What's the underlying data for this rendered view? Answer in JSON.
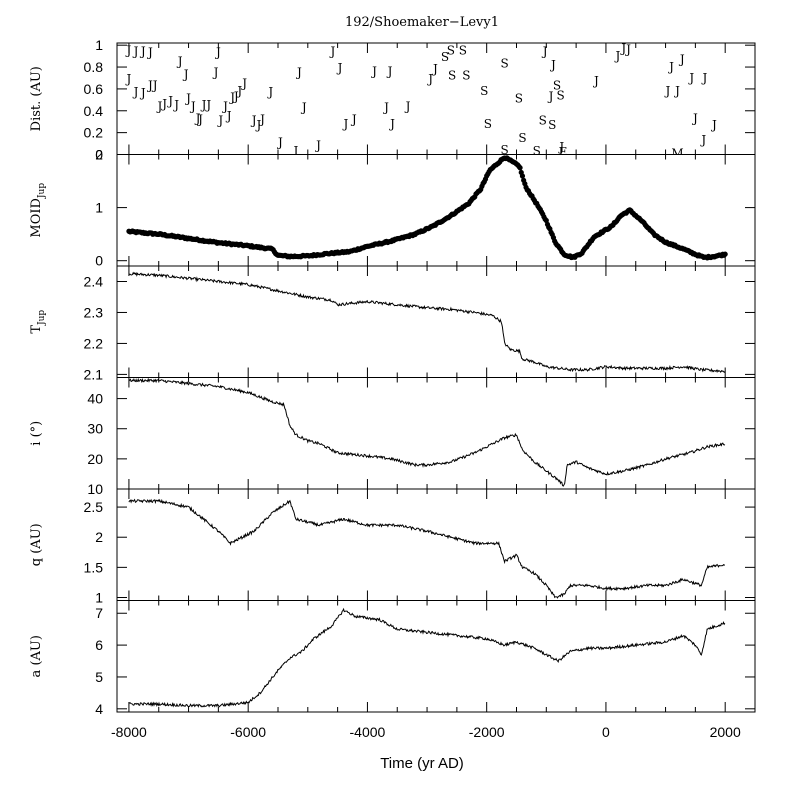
{
  "title": "192/Shoemaker−Levy1",
  "xlabel": "Time (yr AD)",
  "chart_data": [
    {
      "type": "scatter",
      "name": "distance",
      "ylabel": "Dist. (AU)",
      "xlim": [
        -8200,
        2500
      ],
      "ylim": [
        0,
        1.02
      ],
      "yticks": [
        0,
        0.2,
        0.4,
        0.6,
        0.8,
        1
      ],
      "ytick_labels": [
        "0",
        "0.2",
        "0.4",
        "0.6",
        "0.8",
        "1"
      ],
      "points": [
        {
          "x": -8000,
          "y": 0.96,
          "label": "J"
        },
        {
          "x": -7880,
          "y": 0.95,
          "label": "J"
        },
        {
          "x": -7760,
          "y": 0.95,
          "label": "J"
        },
        {
          "x": -7640,
          "y": 0.94,
          "label": "J"
        },
        {
          "x": -8000,
          "y": 0.7,
          "label": "J"
        },
        {
          "x": -7880,
          "y": 0.58,
          "label": "J"
        },
        {
          "x": -7760,
          "y": 0.57,
          "label": "J"
        },
        {
          "x": -7640,
          "y": 0.64,
          "label": "J"
        },
        {
          "x": -7560,
          "y": 0.64,
          "label": "J"
        },
        {
          "x": -7480,
          "y": 0.45,
          "label": "J"
        },
        {
          "x": -7400,
          "y": 0.47,
          "label": "J"
        },
        {
          "x": -7300,
          "y": 0.5,
          "label": "J"
        },
        {
          "x": -7200,
          "y": 0.46,
          "label": "J"
        },
        {
          "x": -7140,
          "y": 0.86,
          "label": "J"
        },
        {
          "x": -7040,
          "y": 0.74,
          "label": "J"
        },
        {
          "x": -7000,
          "y": 0.52,
          "label": "J"
        },
        {
          "x": -6920,
          "y": 0.45,
          "label": "J"
        },
        {
          "x": -6840,
          "y": 0.34,
          "label": "J"
        },
        {
          "x": -6800,
          "y": 0.33,
          "label": "J"
        },
        {
          "x": -6740,
          "y": 0.46,
          "label": "J"
        },
        {
          "x": -6660,
          "y": 0.46,
          "label": "J"
        },
        {
          "x": -6540,
          "y": 0.76,
          "label": "J"
        },
        {
          "x": -6500,
          "y": 0.94,
          "label": "J"
        },
        {
          "x": -6460,
          "y": 0.32,
          "label": "J"
        },
        {
          "x": -6380,
          "y": 0.45,
          "label": "J"
        },
        {
          "x": -6320,
          "y": 0.36,
          "label": "J"
        },
        {
          "x": -6260,
          "y": 0.53,
          "label": "J"
        },
        {
          "x": -6200,
          "y": 0.54,
          "label": "J"
        },
        {
          "x": -6140,
          "y": 0.59,
          "label": "J"
        },
        {
          "x": -6060,
          "y": 0.66,
          "label": "J"
        },
        {
          "x": -5900,
          "y": 0.32,
          "label": "J"
        },
        {
          "x": -5820,
          "y": 0.28,
          "label": "J"
        },
        {
          "x": -5760,
          "y": 0.33,
          "label": "J"
        },
        {
          "x": -5620,
          "y": 0.58,
          "label": "J"
        },
        {
          "x": -5460,
          "y": 0.12,
          "label": "J"
        },
        {
          "x": -5200,
          "y": 0.04,
          "label": "J"
        },
        {
          "x": -5140,
          "y": 0.76,
          "label": "J"
        },
        {
          "x": -5060,
          "y": 0.44,
          "label": "J"
        },
        {
          "x": -4820,
          "y": 0.09,
          "label": "J"
        },
        {
          "x": -4580,
          "y": 0.95,
          "label": "J"
        },
        {
          "x": -4460,
          "y": 0.8,
          "label": "J"
        },
        {
          "x": -4360,
          "y": 0.29,
          "label": "J"
        },
        {
          "x": -4220,
          "y": 0.33,
          "label": "J"
        },
        {
          "x": -3880,
          "y": 0.77,
          "label": "J"
        },
        {
          "x": -3620,
          "y": 0.77,
          "label": "J"
        },
        {
          "x": -3680,
          "y": 0.44,
          "label": "J"
        },
        {
          "x": -3580,
          "y": 0.29,
          "label": "J"
        },
        {
          "x": -3320,
          "y": 0.45,
          "label": "J"
        },
        {
          "x": -2940,
          "y": 0.7,
          "label": "J"
        },
        {
          "x": -2860,
          "y": 0.79,
          "label": "J"
        },
        {
          "x": -2700,
          "y": 0.9,
          "label": "S"
        },
        {
          "x": -2600,
          "y": 0.96,
          "label": "S"
        },
        {
          "x": -2400,
          "y": 0.96,
          "label": "S"
        },
        {
          "x": -2580,
          "y": 0.73,
          "label": "S"
        },
        {
          "x": -2340,
          "y": 0.73,
          "label": "S"
        },
        {
          "x": -2040,
          "y": 0.59,
          "label": "S"
        },
        {
          "x": -1980,
          "y": 0.29,
          "label": "S"
        },
        {
          "x": -1700,
          "y": 0.84,
          "label": "S"
        },
        {
          "x": -1700,
          "y": 0.05,
          "label": "S"
        },
        {
          "x": -1460,
          "y": 0.52,
          "label": "S"
        },
        {
          "x": -1400,
          "y": 0.16,
          "label": "S"
        },
        {
          "x": -1160,
          "y": 0.04,
          "label": "S"
        },
        {
          "x": -1020,
          "y": 0.95,
          "label": "J"
        },
        {
          "x": -880,
          "y": 0.83,
          "label": "J"
        },
        {
          "x": -920,
          "y": 0.54,
          "label": "J"
        },
        {
          "x": -820,
          "y": 0.64,
          "label": "S"
        },
        {
          "x": -760,
          "y": 0.55,
          "label": "S"
        },
        {
          "x": -1060,
          "y": 0.32,
          "label": "S"
        },
        {
          "x": -900,
          "y": 0.28,
          "label": "S"
        },
        {
          "x": -740,
          "y": 0.08,
          "label": "J"
        },
        {
          "x": -720,
          "y": 0.03,
          "label": "E"
        },
        {
          "x": -160,
          "y": 0.68,
          "label": "J"
        },
        {
          "x": 200,
          "y": 0.91,
          "label": "J"
        },
        {
          "x": 300,
          "y": 0.98,
          "label": "J"
        },
        {
          "x": 380,
          "y": 0.97,
          "label": "J"
        },
        {
          "x": 1040,
          "y": 0.59,
          "label": "J"
        },
        {
          "x": 1100,
          "y": 0.81,
          "label": "J"
        },
        {
          "x": 1200,
          "y": 0.59,
          "label": "J"
        },
        {
          "x": 1280,
          "y": 0.88,
          "label": "J"
        },
        {
          "x": 1440,
          "y": 0.71,
          "label": "J"
        },
        {
          "x": 1500,
          "y": 0.34,
          "label": "J"
        },
        {
          "x": 1660,
          "y": 0.71,
          "label": "J"
        },
        {
          "x": 1640,
          "y": 0.14,
          "label": "J"
        },
        {
          "x": 1820,
          "y": 0.28,
          "label": "J"
        },
        {
          "x": 1200,
          "y": 0.02,
          "label": "M"
        }
      ]
    },
    {
      "type": "scatter",
      "name": "moid",
      "ylabel": "MOID",
      "ylabel_sub": "Jup",
      "xlim": [
        -8200,
        2500
      ],
      "ylim": [
        -0.1,
        2.0
      ],
      "yticks": [
        0,
        1,
        2
      ],
      "ytick_labels": [
        "0",
        "1",
        "2"
      ],
      "keypoints": [
        [
          -8000,
          0.55
        ],
        [
          -7500,
          0.5
        ],
        [
          -7000,
          0.42
        ],
        [
          -6500,
          0.34
        ],
        [
          -6000,
          0.28
        ],
        [
          -5600,
          0.22
        ],
        [
          -5500,
          0.1
        ],
        [
          -5300,
          0.08
        ],
        [
          -5000,
          0.09
        ],
        [
          -4700,
          0.13
        ],
        [
          -4300,
          0.17
        ],
        [
          -4000,
          0.27
        ],
        [
          -3600,
          0.37
        ],
        [
          -3200,
          0.5
        ],
        [
          -2900,
          0.65
        ],
        [
          -2600,
          0.85
        ],
        [
          -2300,
          1.08
        ],
        [
          -2100,
          1.35
        ],
        [
          -1950,
          1.7
        ],
        [
          -1800,
          1.85
        ],
        [
          -1700,
          1.95
        ],
        [
          -1550,
          1.85
        ],
        [
          -1450,
          1.78
        ],
        [
          -1350,
          1.4
        ],
        [
          -1150,
          1.05
        ],
        [
          -1000,
          0.75
        ],
        [
          -850,
          0.35
        ],
        [
          -700,
          0.12
        ],
        [
          -550,
          0.06
        ],
        [
          -400,
          0.15
        ],
        [
          -200,
          0.45
        ],
        [
          100,
          0.65
        ],
        [
          250,
          0.85
        ],
        [
          400,
          0.95
        ],
        [
          600,
          0.75
        ],
        [
          800,
          0.5
        ],
        [
          1000,
          0.35
        ],
        [
          1300,
          0.22
        ],
        [
          1500,
          0.12
        ],
        [
          1650,
          0.06
        ],
        [
          1800,
          0.08
        ],
        [
          2000,
          0.12
        ]
      ]
    },
    {
      "type": "line",
      "name": "tisserand",
      "ylabel": "T",
      "ylabel_sub": "Jup",
      "xlim": [
        -8200,
        2500
      ],
      "ylim": [
        2.09,
        2.45
      ],
      "yticks": [
        2.1,
        2.2,
        2.3,
        2.4
      ],
      "ytick_labels": [
        "2.1",
        "2.2",
        "2.3",
        "2.4"
      ],
      "keypoints": [
        [
          -8000,
          2.425
        ],
        [
          -7500,
          2.42
        ],
        [
          -7000,
          2.41
        ],
        [
          -6500,
          2.4
        ],
        [
          -6000,
          2.39
        ],
        [
          -5500,
          2.37
        ],
        [
          -5000,
          2.35
        ],
        [
          -4600,
          2.34
        ],
        [
          -4500,
          2.325
        ],
        [
          -4000,
          2.335
        ],
        [
          -3500,
          2.325
        ],
        [
          -3000,
          2.315
        ],
        [
          -2600,
          2.31
        ],
        [
          -2200,
          2.3
        ],
        [
          -1900,
          2.29
        ],
        [
          -1750,
          2.27
        ],
        [
          -1700,
          2.2
        ],
        [
          -1600,
          2.18
        ],
        [
          -1450,
          2.175
        ],
        [
          -1400,
          2.15
        ],
        [
          -1200,
          2.14
        ],
        [
          -1000,
          2.125
        ],
        [
          -800,
          2.12
        ],
        [
          -600,
          2.115
        ],
        [
          -300,
          2.115
        ],
        [
          0,
          2.125
        ],
        [
          300,
          2.12
        ],
        [
          600,
          2.12
        ],
        [
          1000,
          2.12
        ],
        [
          1300,
          2.125
        ],
        [
          1600,
          2.115
        ],
        [
          2000,
          2.11
        ]
      ]
    },
    {
      "type": "line",
      "name": "inclination",
      "ylabel": "i (°)",
      "xlim": [
        -8200,
        2500
      ],
      "ylim": [
        10,
        47
      ],
      "yticks": [
        10,
        20,
        30,
        40
      ],
      "ytick_labels": [
        "10",
        "20",
        "30",
        "40"
      ],
      "keypoints": [
        [
          -8000,
          46
        ],
        [
          -7500,
          46
        ],
        [
          -7000,
          45
        ],
        [
          -6500,
          44
        ],
        [
          -6000,
          42
        ],
        [
          -5600,
          39
        ],
        [
          -5400,
          38
        ],
        [
          -5300,
          31
        ],
        [
          -5200,
          28
        ],
        [
          -5000,
          26
        ],
        [
          -4800,
          25
        ],
        [
          -4500,
          22
        ],
        [
          -4000,
          21
        ],
        [
          -3600,
          20
        ],
        [
          -3200,
          18
        ],
        [
          -3000,
          18
        ],
        [
          -2600,
          19
        ],
        [
          -2200,
          22
        ],
        [
          -1900,
          25
        ],
        [
          -1700,
          27
        ],
        [
          -1500,
          28
        ],
        [
          -1400,
          23
        ],
        [
          -1200,
          19
        ],
        [
          -1000,
          16
        ],
        [
          -800,
          13
        ],
        [
          -700,
          11
        ],
        [
          -650,
          18
        ],
        [
          -500,
          19
        ],
        [
          -300,
          17
        ],
        [
          0,
          15
        ],
        [
          300,
          16
        ],
        [
          700,
          18
        ],
        [
          1000,
          20
        ],
        [
          1400,
          22
        ],
        [
          1700,
          24
        ],
        [
          2000,
          25
        ]
      ]
    },
    {
      "type": "line",
      "name": "perihelion",
      "ylabel": "q (AU)",
      "xlim": [
        -8200,
        2500
      ],
      "ylim": [
        0.95,
        2.8
      ],
      "yticks": [
        1,
        1.5,
        2,
        2.5
      ],
      "ytick_labels": [
        "1",
        "1.5",
        "2",
        "2.5"
      ],
      "keypoints": [
        [
          -8000,
          2.6
        ],
        [
          -7500,
          2.6
        ],
        [
          -7000,
          2.5
        ],
        [
          -6500,
          2.1
        ],
        [
          -6300,
          1.9
        ],
        [
          -5900,
          2.1
        ],
        [
          -5600,
          2.4
        ],
        [
          -5300,
          2.6
        ],
        [
          -5200,
          2.3
        ],
        [
          -4800,
          2.2
        ],
        [
          -4400,
          2.3
        ],
        [
          -4000,
          2.2
        ],
        [
          -3500,
          2.2
        ],
        [
          -3000,
          2.1
        ],
        [
          -2600,
          2.0
        ],
        [
          -2200,
          1.9
        ],
        [
          -1800,
          1.9
        ],
        [
          -1700,
          1.6
        ],
        [
          -1500,
          1.7
        ],
        [
          -1400,
          1.5
        ],
        [
          -1200,
          1.4
        ],
        [
          -1000,
          1.2
        ],
        [
          -850,
          1.0
        ],
        [
          -700,
          1.05
        ],
        [
          -600,
          1.2
        ],
        [
          -300,
          1.2
        ],
        [
          0,
          1.15
        ],
        [
          300,
          1.15
        ],
        [
          700,
          1.2
        ],
        [
          1000,
          1.2
        ],
        [
          1300,
          1.3
        ],
        [
          1600,
          1.2
        ],
        [
          1700,
          1.5
        ],
        [
          2000,
          1.55
        ]
      ]
    },
    {
      "type": "line",
      "name": "semimajor",
      "ylabel": "a (AU)",
      "xlim": [
        -8200,
        2500
      ],
      "ylim": [
        3.9,
        7.4
      ],
      "yticks": [
        4,
        5,
        6,
        7
      ],
      "ytick_labels": [
        "4",
        "5",
        "6",
        "7"
      ],
      "keypoints": [
        [
          -8000,
          4.15
        ],
        [
          -7500,
          4.15
        ],
        [
          -7000,
          4.1
        ],
        [
          -6500,
          4.1
        ],
        [
          -6000,
          4.2
        ],
        [
          -5800,
          4.5
        ],
        [
          -5500,
          5.2
        ],
        [
          -5300,
          5.6
        ],
        [
          -5100,
          5.8
        ],
        [
          -4900,
          6.2
        ],
        [
          -4600,
          6.6
        ],
        [
          -4400,
          7.1
        ],
        [
          -4200,
          6.9
        ],
        [
          -3800,
          6.8
        ],
        [
          -3500,
          6.5
        ],
        [
          -3000,
          6.4
        ],
        [
          -2500,
          6.3
        ],
        [
          -2000,
          6.2
        ],
        [
          -1700,
          6.0
        ],
        [
          -1500,
          6.1
        ],
        [
          -1200,
          5.9
        ],
        [
          -1000,
          5.7
        ],
        [
          -800,
          5.5
        ],
        [
          -600,
          5.8
        ],
        [
          -300,
          5.9
        ],
        [
          0,
          5.9
        ],
        [
          500,
          6.0
        ],
        [
          1000,
          6.1
        ],
        [
          1300,
          6.3
        ],
        [
          1500,
          6.0
        ],
        [
          1600,
          5.7
        ],
        [
          1700,
          6.5
        ],
        [
          2000,
          6.7
        ]
      ]
    }
  ],
  "xaxis": {
    "ticks": [
      -8000,
      -6000,
      -4000,
      -2000,
      0,
      2000
    ],
    "tick_labels": [
      "-8000",
      "-6000",
      "-4000",
      "-2000",
      "0",
      "2000"
    ],
    "minor_step": 500
  }
}
